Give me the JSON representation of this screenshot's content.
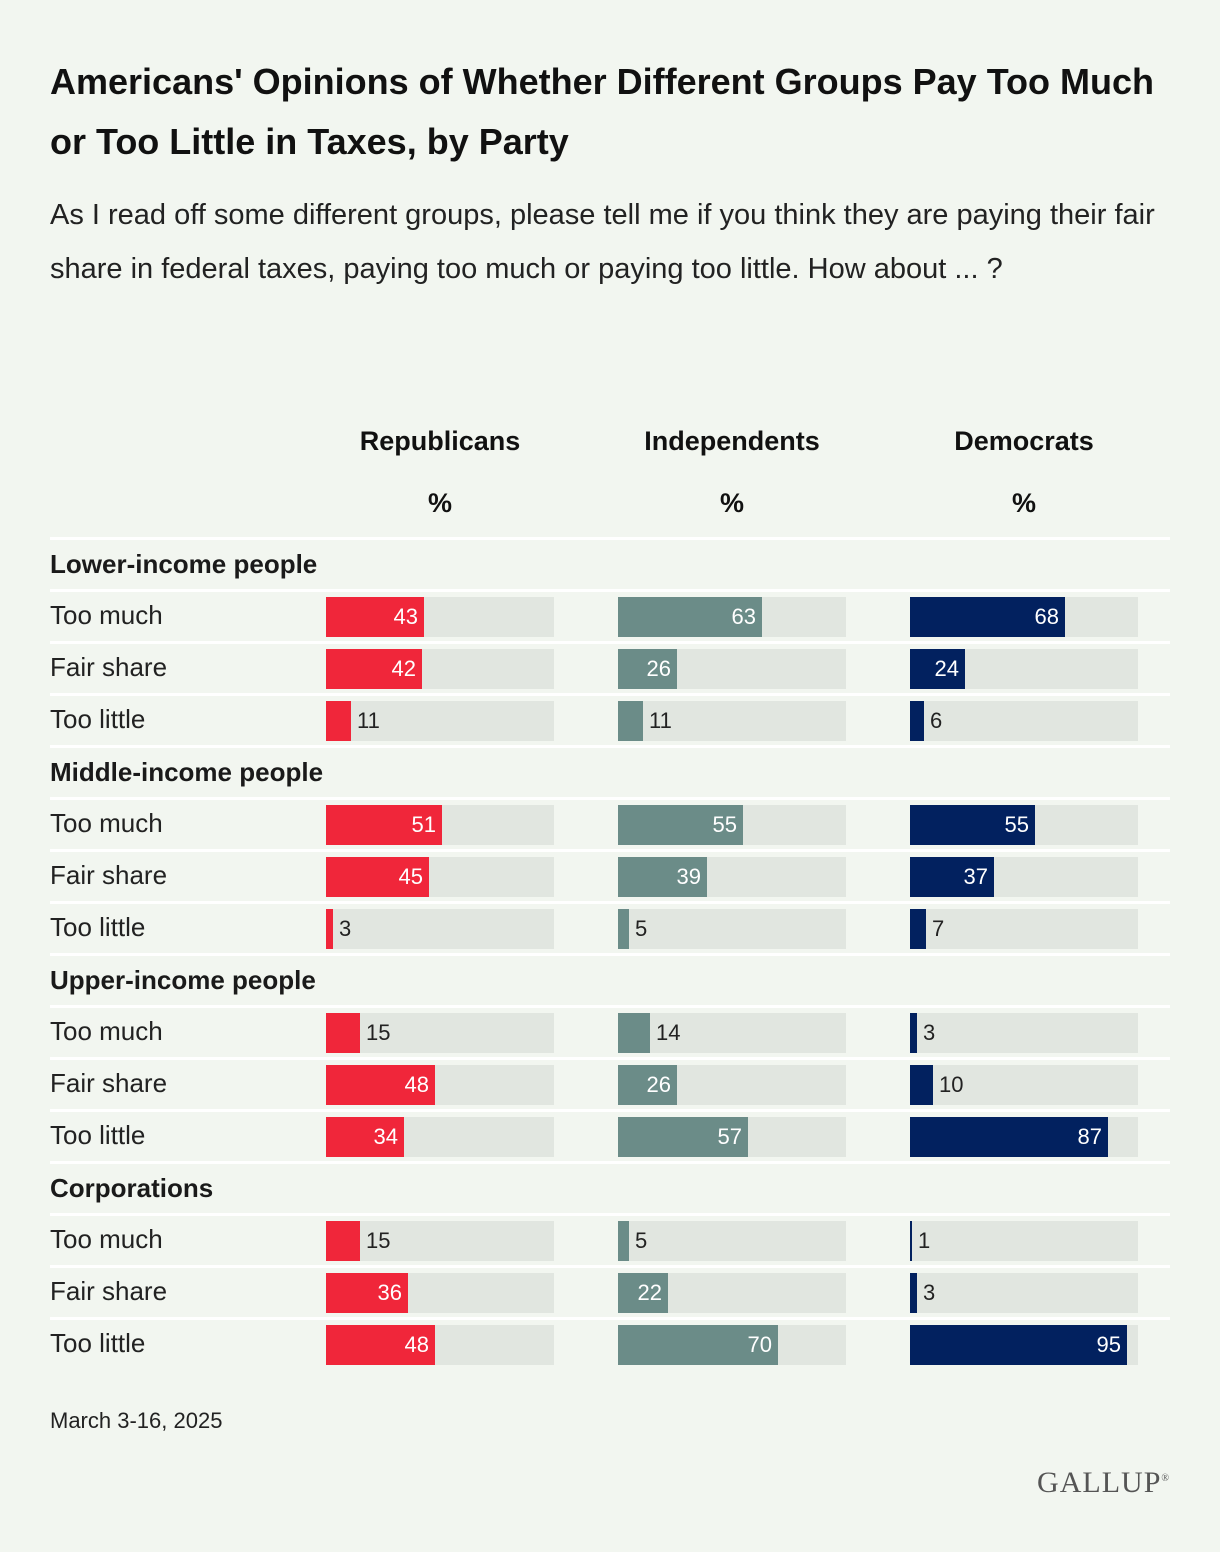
{
  "title": "Americans' Opinions of Whether Different Groups Pay Too Much or Too Little in Taxes, by Party",
  "subtitle": "As I read off some different groups, please tell me if you think they are paying their fair share in federal taxes, paying too much or paying too little. How about ... ?",
  "footnote": "March 3-16, 2025",
  "logo": "GALLUP",
  "chart_data": {
    "type": "bar",
    "unit_label": "%",
    "xlim": [
      0,
      100
    ],
    "series": [
      {
        "name": "Republicans",
        "color": "#f0263a"
      },
      {
        "name": "Independents",
        "color": "#6b8c88"
      },
      {
        "name": "Democrats",
        "color": "#02215f"
      }
    ],
    "groups": [
      {
        "label": "Lower-income people",
        "rows": [
          {
            "label": "Too much",
            "values": [
              43,
              63,
              68
            ]
          },
          {
            "label": "Fair share",
            "values": [
              42,
              26,
              24
            ]
          },
          {
            "label": "Too little",
            "values": [
              11,
              11,
              6
            ]
          }
        ]
      },
      {
        "label": "Middle-income people",
        "rows": [
          {
            "label": "Too much",
            "values": [
              51,
              55,
              55
            ]
          },
          {
            "label": "Fair share",
            "values": [
              45,
              39,
              37
            ]
          },
          {
            "label": "Too little",
            "values": [
              3,
              5,
              7
            ]
          }
        ]
      },
      {
        "label": "Upper-income people",
        "rows": [
          {
            "label": "Too much",
            "values": [
              15,
              14,
              3
            ]
          },
          {
            "label": "Fair share",
            "values": [
              48,
              26,
              10
            ]
          },
          {
            "label": "Too little",
            "values": [
              34,
              57,
              87
            ]
          }
        ]
      },
      {
        "label": "Corporations",
        "rows": [
          {
            "label": "Too much",
            "values": [
              15,
              5,
              1
            ]
          },
          {
            "label": "Fair share",
            "values": [
              36,
              22,
              3
            ]
          },
          {
            "label": "Too little",
            "values": [
              48,
              70,
              95
            ]
          }
        ]
      }
    ]
  }
}
